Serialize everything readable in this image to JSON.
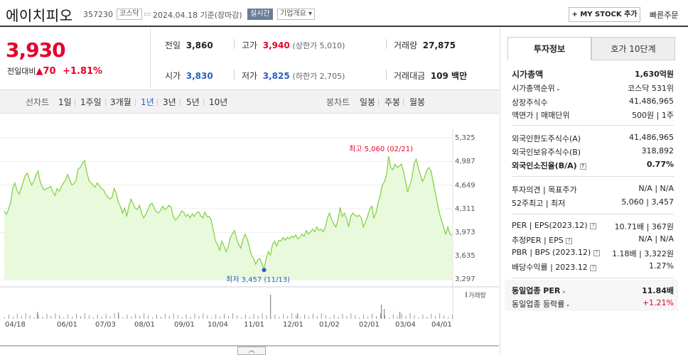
{
  "header": {
    "name": "에이치피오",
    "code": "357230",
    "market_tag": "코스닥",
    "date": "2024.04.18 기준(장마감)",
    "live_tag": "실시간",
    "company_tag": "기업개요",
    "mystock_button": "+ MY STOCK 추가",
    "quick_order": "빠른주문"
  },
  "price": {
    "current": "3,930",
    "change_label": "전일대비",
    "change_value": "70",
    "change_pct": "+1.81%"
  },
  "stats": {
    "prev_close_label": "전일",
    "prev_close": "3,860",
    "high_label": "고가",
    "high": "3,940",
    "upper_limit": "(상한가 5,010)",
    "volume_label": "거래량",
    "volume": "27,875",
    "open_label": "시가",
    "open": "3,830",
    "low_label": "저가",
    "low": "3,825",
    "lower_limit": "(하한가 2,705)",
    "amount_label": "거래대금",
    "amount": "109 백만"
  },
  "line_tabs": {
    "label": "선차트",
    "items": [
      "1일",
      "1주일",
      "3개월",
      "1년",
      "3년",
      "5년",
      "10년"
    ],
    "selected": "1년"
  },
  "candle_tabs": {
    "label": "봉차트",
    "items": [
      "일봉",
      "주봉",
      "월봉"
    ]
  },
  "chart_data": {
    "type": "area",
    "y_ticks": [
      "5,325",
      "4,987",
      "4,649",
      "4,311",
      "3,973",
      "3,635",
      "3,297"
    ],
    "ylim": [
      3297,
      5325
    ],
    "x_ticks": [
      "04/18",
      "06/01",
      "07/03",
      "08/01",
      "09/01",
      "10/04",
      "11/01",
      "12/01",
      "01/02",
      "02/01",
      "03/04",
      "04/01"
    ],
    "max_label": "최고 5,060 (02/21)",
    "min_label": "최저 3,457 (11/13)",
    "volume_legend": "거래량",
    "values": [
      4280,
      4230,
      4300,
      4400,
      4600,
      4680,
      4580,
      4520,
      4600,
      4700,
      4790,
      4820,
      4720,
      4650,
      4700,
      4790,
      4850,
      4700,
      4620,
      4580,
      4600,
      4610,
      4630,
      4550,
      4500,
      4600,
      4560,
      4620,
      4680,
      4720,
      4800,
      4720,
      4650,
      4670,
      4720,
      4880,
      4900,
      4960,
      5000,
      4850,
      4720,
      4680,
      4650,
      4620,
      4680,
      4640,
      4600,
      4580,
      4520,
      4480,
      4450,
      4470,
      4600,
      4540,
      4400,
      4350,
      4250,
      4320,
      4200,
      4350,
      4450,
      4380,
      4320,
      4300,
      4360,
      4250,
      4180,
      4230,
      4300,
      4370,
      4390,
      4320,
      4270,
      4250,
      4290,
      4350,
      4300,
      4320,
      4360,
      4330,
      4200,
      4150,
      4180,
      4220,
      4280,
      4260,
      4200,
      4230,
      4180,
      4240,
      4200,
      4250,
      4270,
      4210,
      4180,
      4260,
      4200,
      4200,
      4150,
      4000,
      3850,
      3800,
      3720,
      3850,
      3780,
      3700,
      3760,
      3900,
      3950,
      4000,
      3880,
      3800,
      3750,
      3870,
      3950,
      3880,
      3780,
      3650,
      3600,
      3520,
      3580,
      3600,
      3520,
      3457,
      3600,
      3700,
      3650,
      3800,
      3850,
      3780,
      3860,
      3850,
      3900,
      3860,
      3900,
      3880,
      3920,
      3900,
      3940,
      3880,
      3900,
      3950,
      3920,
      4000,
      3950,
      3980,
      4020,
      3980,
      4050,
      4000,
      4020,
      3980,
      4050,
      4180,
      4250,
      4150,
      4100,
      4050,
      4150,
      4330,
      4200,
      4250,
      4180,
      4050,
      4200,
      4250,
      4220,
      4200,
      4220,
      4180,
      4050,
      4120,
      4200,
      4300,
      4350,
      4180,
      4250,
      4400,
      4500,
      4650,
      4700,
      4800,
      5060,
      4900,
      4870,
      4950,
      4900,
      4920,
      4950,
      4850,
      4700,
      4550,
      4650,
      4750,
      4950,
      5020,
      4900,
      4800,
      4700,
      4760,
      4860,
      4900,
      4850,
      4700,
      4550,
      4400,
      4250,
      4150,
      4050,
      3950,
      4050,
      3950,
      3930
    ]
  },
  "right_panel": {
    "tab_invest": "투자정보",
    "tab_quote": "호가 10단계",
    "market_cap_label": "시가총액",
    "market_cap": "1,630억원",
    "rank_label": "시가총액순위",
    "rank": "코스닥 531위",
    "shares_label": "상장주식수",
    "shares": "41,486,965",
    "par_label": "액면가 | 매매단위",
    "par": "500원 | 1주",
    "foreign_limit_label": "외국인한도주식수(A)",
    "foreign_limit": "41,486,965",
    "foreign_hold_label": "외국인보유주식수(B)",
    "foreign_hold": "318,892",
    "foreign_rate_label": "외국인소진율(B/A)",
    "foreign_rate": "0.77%",
    "opinion_label": "투자의견 | 목표주가",
    "opinion": "N/A | N/A",
    "w52_label": "52주최고 | 최저",
    "w52": "5,060 | 3,457",
    "per_label": "PER | EPS(2023.12)",
    "per": "10.71배 | 367원",
    "est_per_label": "추정PER | EPS",
    "est_per": "N/A | N/A",
    "pbr_label": "PBR | BPS (2023.12)",
    "pbr": "1.18배 | 3,322원",
    "div_label": "배당수익률 | 2023.12",
    "div": "1.27%",
    "sector_per_label": "동일업종 PER",
    "sector_per": "11.84배",
    "sector_rate_label": "동일업종 등락률",
    "sector_rate": "+1.21%"
  }
}
